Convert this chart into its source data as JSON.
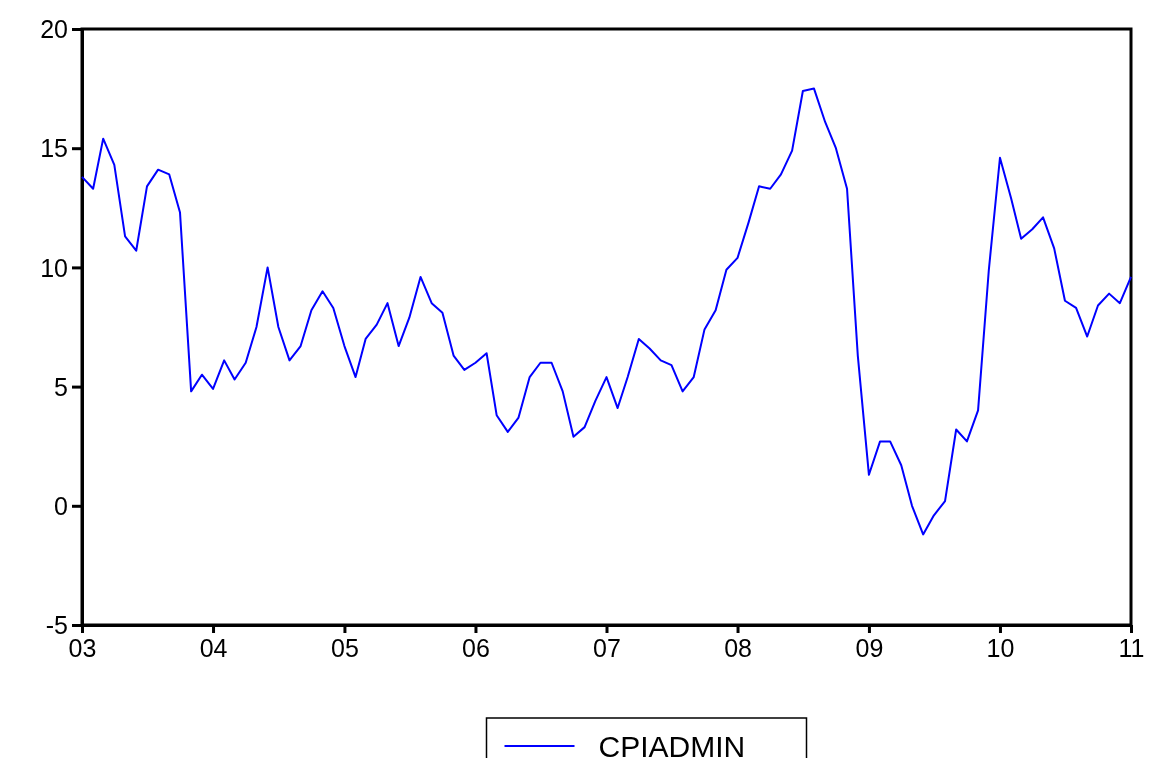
{
  "chart_data": {
    "type": "line",
    "x": [
      "2003-01",
      "2003-02",
      "2003-03",
      "2003-04",
      "2003-05",
      "2003-06",
      "2003-07",
      "2003-08",
      "2003-09",
      "2003-10",
      "2003-11",
      "2003-12",
      "2004-01",
      "2004-02",
      "2004-03",
      "2004-04",
      "2004-05",
      "2004-06",
      "2004-07",
      "2004-08",
      "2004-09",
      "2004-10",
      "2004-11",
      "2004-12",
      "2005-01",
      "2005-02",
      "2005-03",
      "2005-04",
      "2005-05",
      "2005-06",
      "2005-07",
      "2005-08",
      "2005-09",
      "2005-10",
      "2005-11",
      "2005-12",
      "2006-01",
      "2006-02",
      "2006-03",
      "2006-04",
      "2006-05",
      "2006-06",
      "2006-07",
      "2006-08",
      "2006-09",
      "2006-10",
      "2006-11",
      "2006-12",
      "2007-01",
      "2007-02",
      "2007-03",
      "2007-04",
      "2007-05",
      "2007-06",
      "2007-07",
      "2007-08",
      "2007-09",
      "2007-10",
      "2007-11",
      "2007-12",
      "2008-01",
      "2008-02",
      "2008-03",
      "2008-04",
      "2008-05",
      "2008-06",
      "2008-07",
      "2008-08",
      "2008-09",
      "2008-10",
      "2008-11",
      "2008-12",
      "2009-01",
      "2009-02",
      "2009-03",
      "2009-04",
      "2009-05",
      "2009-06",
      "2009-07",
      "2009-08",
      "2009-09",
      "2009-10",
      "2009-11",
      "2009-12",
      "2010-01",
      "2010-02",
      "2010-03",
      "2010-04",
      "2010-05",
      "2010-06",
      "2010-07",
      "2010-08",
      "2010-09",
      "2010-10",
      "2010-11",
      "2010-12",
      "2011-01"
    ],
    "series": [
      {
        "name": "CPIADMIN",
        "color": "#0000ff",
        "values": [
          13.8,
          13.3,
          15.4,
          14.3,
          11.3,
          10.7,
          13.4,
          14.1,
          13.9,
          12.3,
          4.8,
          5.5,
          4.9,
          6.1,
          5.3,
          6.0,
          7.5,
          10.0,
          7.5,
          6.1,
          6.7,
          8.2,
          9.0,
          8.3,
          6.7,
          5.4,
          7.0,
          7.6,
          8.5,
          6.7,
          7.9,
          9.6,
          8.5,
          8.1,
          6.3,
          5.7,
          6.0,
          6.4,
          3.8,
          3.1,
          3.7,
          5.4,
          6.0,
          6.0,
          4.8,
          2.9,
          3.3,
          4.4,
          5.4,
          4.1,
          5.4,
          7.0,
          6.6,
          6.1,
          5.9,
          4.8,
          5.4,
          7.4,
          8.2,
          9.9,
          10.4,
          11.9,
          13.4,
          13.3,
          13.9,
          14.9,
          17.4,
          17.5,
          16.1,
          15.0,
          13.3,
          6.3,
          1.3,
          2.7,
          2.7,
          1.7,
          0.0,
          -1.2,
          -0.4,
          0.2,
          3.2,
          2.7,
          4.0,
          9.9,
          14.6,
          12.9,
          11.2,
          11.6,
          12.1,
          10.8,
          8.6,
          8.3,
          7.1,
          8.4,
          8.9,
          8.5,
          9.6
        ]
      }
    ],
    "xlim": [
      "2003-01",
      "2011-01"
    ],
    "xticks": [
      {
        "value": "2003-01",
        "label": "03"
      },
      {
        "value": "2004-01",
        "label": "04"
      },
      {
        "value": "2005-01",
        "label": "05"
      },
      {
        "value": "2006-01",
        "label": "06"
      },
      {
        "value": "2007-01",
        "label": "07"
      },
      {
        "value": "2008-01",
        "label": "08"
      },
      {
        "value": "2009-01",
        "label": "09"
      },
      {
        "value": "2010-01",
        "label": "10"
      },
      {
        "value": "2011-01",
        "label": "11"
      }
    ],
    "ylim": [
      -5,
      20
    ],
    "yticks": [
      -5,
      0,
      5,
      10,
      15,
      20
    ],
    "legend": "bottom",
    "grid": false,
    "marker": "none",
    "line_style": "solid"
  }
}
